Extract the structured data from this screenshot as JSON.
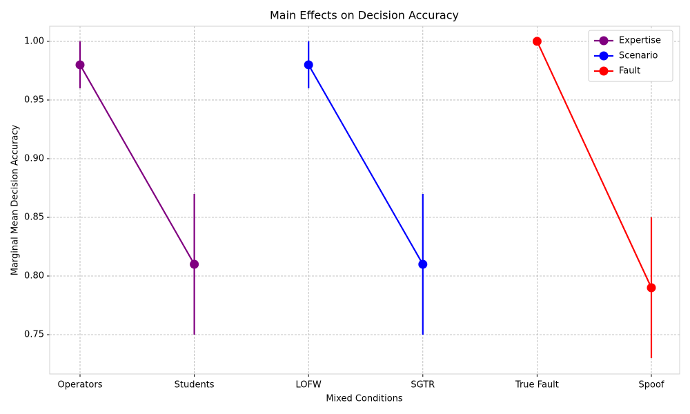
{
  "chart_data": {
    "type": "line",
    "title": "Main Effects on Decision Accuracy",
    "x_label": "Mixed Conditions",
    "y_label": "Marginal Mean Decision Accuracy",
    "categories": [
      "Operators",
      "Students",
      "LOFW",
      "SGTR",
      "True Fault",
      "Spoof"
    ],
    "series": [
      {
        "name": "Expertise",
        "color": "#800080",
        "values": [
          0.98,
          0.81,
          null,
          null,
          null,
          null
        ],
        "errors": [
          0.02,
          0.06,
          null,
          null,
          null,
          null
        ]
      },
      {
        "name": "Scenario",
        "color": "#0000ff",
        "values": [
          null,
          null,
          0.98,
          0.81,
          null,
          null
        ],
        "errors": [
          null,
          null,
          0.02,
          0.06,
          null,
          null
        ]
      },
      {
        "name": "Fault",
        "color": "#ff0000",
        "values": [
          null,
          null,
          null,
          null,
          1.0,
          0.79
        ],
        "errors": [
          null,
          null,
          null,
          null,
          0,
          0.06
        ]
      }
    ],
    "ylim": [
      0.7165,
      1.0129
    ],
    "yticks": [
      0.75,
      {
        "value": 0.8,
        "label": "0.80"
      },
      0.85,
      {
        "value": 0.9,
        "label": "0.90"
      },
      0.95,
      {
        "value": 1.0,
        "label": "1.00"
      }
    ],
    "grid": true,
    "legend": "upper right"
  }
}
